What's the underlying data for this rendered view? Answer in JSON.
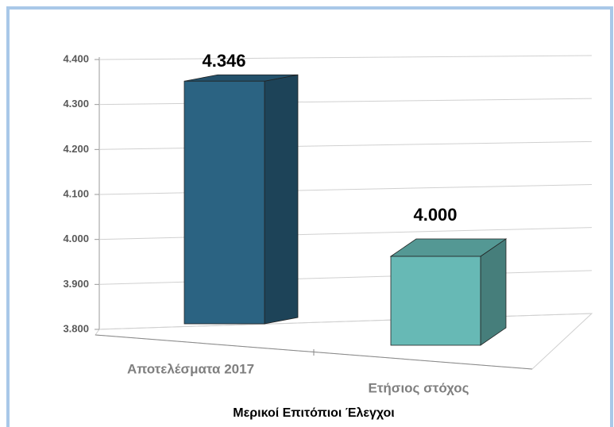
{
  "chart_data": {
    "type": "bar3d",
    "categories": [
      "Αποτελέσματα 2017",
      "Ετήσιος στόχος"
    ],
    "values": [
      4346,
      4000
    ],
    "value_labels": [
      "4.346",
      "4.000"
    ],
    "colors": [
      "#2b6382",
      "#67b9b5"
    ],
    "x_label": "Μερικοί Επιτόπιοι Έλεγχοι",
    "ylim": [
      3800,
      4400
    ],
    "yticks": [
      {
        "value": 3800,
        "label": "3.800"
      },
      {
        "value": 3900,
        "label": "3.900"
      },
      {
        "value": 4000,
        "label": "4.000"
      },
      {
        "value": 4100,
        "label": "4.100"
      },
      {
        "value": 4200,
        "label": "4.200"
      },
      {
        "value": 4300,
        "label": "4.300"
      },
      {
        "value": 4400,
        "label": "4.400"
      }
    ],
    "grid": true
  }
}
